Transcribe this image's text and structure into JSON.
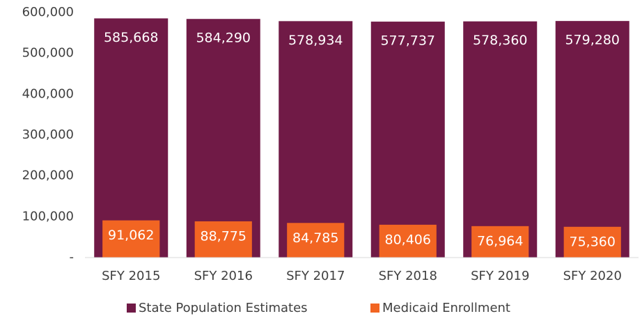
{
  "chart_data": {
    "type": "bar",
    "overlap": true,
    "categories": [
      "SFY 2015",
      "SFY 2016",
      "SFY 2017",
      "SFY 2018",
      "SFY 2019",
      "SFY 2020"
    ],
    "series": [
      {
        "name": "State Population Estimates",
        "color": "#701a46",
        "values": [
          585668,
          584290,
          578934,
          577737,
          578360,
          579280
        ],
        "value_labels": [
          "585,668",
          "584,290",
          "578,934",
          "577,737",
          "578,360",
          "579,280"
        ]
      },
      {
        "name": "Medicaid Enrollment",
        "color": "#f26522",
        "values": [
          91062,
          88775,
          84785,
          80406,
          76964,
          75360
        ],
        "value_labels": [
          "91,062",
          "88,775",
          "84,785",
          "80,406",
          "76,964",
          "75,360"
        ]
      }
    ],
    "ylim": [
      0,
      600000
    ],
    "yticks": [
      {
        "value": 0,
        "label": "-"
      },
      {
        "value": 100000,
        "label": "100,000"
      },
      {
        "value": 200000,
        "label": "200,000"
      },
      {
        "value": 300000,
        "label": "300,000"
      },
      {
        "value": 400000,
        "label": "400,000"
      },
      {
        "value": 500000,
        "label": "500,000"
      },
      {
        "value": 600000,
        "label": "600,000"
      }
    ],
    "grid": false,
    "legend": "bottom"
  }
}
